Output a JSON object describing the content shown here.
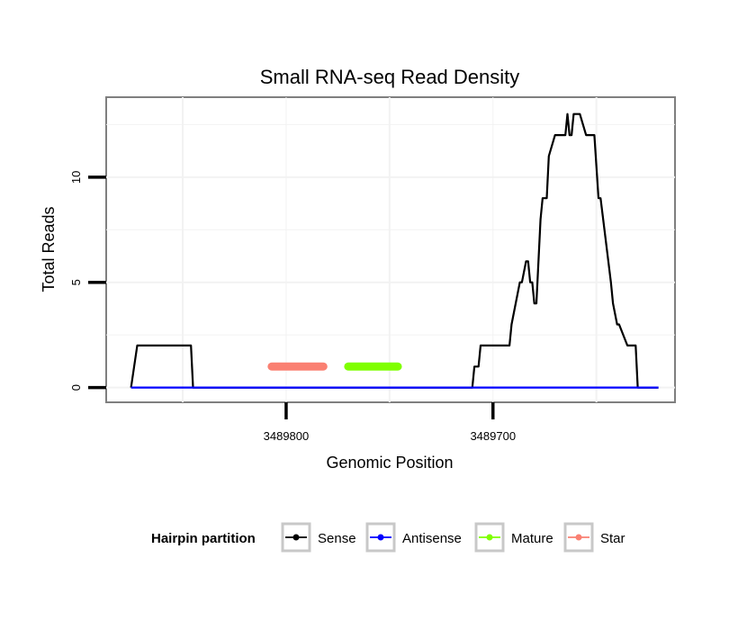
{
  "chart_data": {
    "type": "line",
    "title": "Small RNA-seq Read Density",
    "xlabel": "Genomic Position",
    "ylabel": "Total Reads",
    "x_reversed": true,
    "xlim": [
      3489887,
      3489612
    ],
    "ylim": [
      -0.7,
      13.8
    ],
    "x_ticks": [
      3489800,
      3489700
    ],
    "x_tick_labels": [
      "3489800",
      "3489700"
    ],
    "y_ticks": [
      0,
      5,
      10
    ],
    "y_tick_labels": [
      "0",
      "5",
      "10"
    ],
    "grid": true,
    "legend": {
      "title": "Hairpin partition",
      "position": "bottom",
      "entries": [
        {
          "label": "Sense",
          "color": "#000000"
        },
        {
          "label": "Antisense",
          "color": "#0000ff"
        },
        {
          "label": "Mature",
          "color": "#7fff00"
        },
        {
          "label": "Star",
          "color": "#fa8072"
        }
      ]
    },
    "series": [
      {
        "name": "Sense",
        "color": "#000000",
        "x": [
          3489875,
          3489872,
          3489871,
          3489846,
          3489845,
          3489808,
          3489807,
          3489782,
          3489781,
          3489771,
          3489770,
          3489746,
          3489745,
          3489710,
          3489709,
          3489707,
          3489706,
          3489692,
          3489691,
          3489687,
          3489686,
          3489684,
          3489683,
          3489682,
          3489681,
          3489680,
          3489679,
          3489677,
          3489676,
          3489674,
          3489673,
          3489670,
          3489669,
          3489665,
          3489664,
          3489663,
          3489662,
          3489661,
          3489660,
          3489659,
          3489658,
          3489655,
          3489654,
          3489652,
          3489651,
          3489649,
          3489648,
          3489643,
          3489642,
          3489640,
          3489639,
          3489635,
          3489634,
          3489631,
          3489630,
          3489626,
          3489625,
          3489620
        ],
        "values": [
          0,
          2,
          2,
          2,
          0,
          0,
          0,
          0,
          0,
          0,
          0,
          0,
          0,
          0,
          1,
          1,
          2,
          2,
          3,
          5,
          5,
          6,
          6,
          5,
          5,
          4,
          4,
          8,
          9,
          9,
          11,
          12,
          12,
          12,
          13,
          12,
          12,
          13,
          13,
          13,
          13,
          12,
          12,
          12,
          12,
          9,
          9,
          5,
          4,
          3,
          3,
          2,
          2,
          2,
          0,
          0,
          0,
          0
        ]
      },
      {
        "name": "Antisense",
        "color": "#0000ff",
        "x": [
          3489875,
          3489620
        ],
        "values": [
          0,
          0
        ]
      },
      {
        "name": "Mature",
        "color": "#7fff00",
        "x": [
          3489770,
          3489746
        ],
        "values": [
          1,
          1
        ]
      },
      {
        "name": "Star",
        "color": "#fa8072",
        "x": [
          3489807,
          3489782
        ],
        "values": [
          1,
          1
        ]
      }
    ]
  }
}
